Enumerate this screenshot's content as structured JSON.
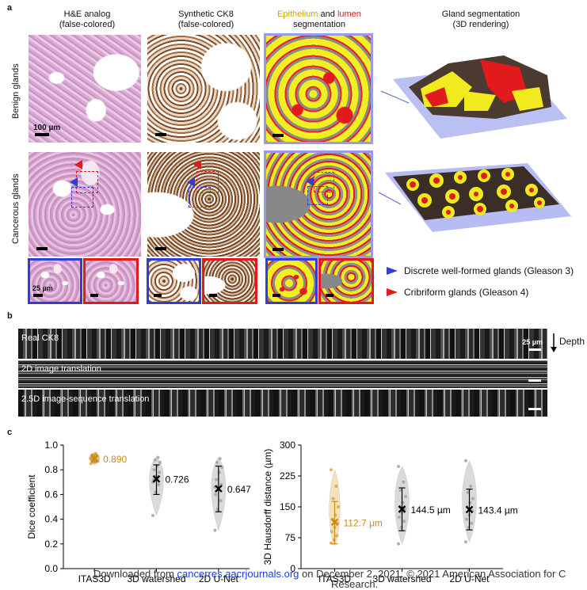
{
  "panels": {
    "a": "a",
    "b": "b",
    "c": "c"
  },
  "panel_a": {
    "col1_line1": "H&E analog",
    "col1_line2": "(false-colored)",
    "col2_line1": "Synthetic CK8",
    "col2_line2": "(false-colored)",
    "col3_epithelium": "Epithelium",
    "col3_and": "and",
    "col3_lumen": "lumen",
    "col3_line2": "segmentation",
    "col4_line1": "Gland segmentation",
    "col4_line2": "(3D rendering)",
    "row1_label": "Benign glands",
    "row2_label": "Cancerous glands",
    "scale_100": "100 µm",
    "scale_25": "25 µm",
    "legend_blue": "Discrete well-formed glands (Gleason 3)",
    "legend_red": "Cribriform glands (Gleason 4)",
    "colors": {
      "epithelium": "#c9a800",
      "lumen": "#e31a1c",
      "blue_box": "#2f3fd6",
      "red_box": "#e11b1b",
      "lavender_box": "#9a9ae8"
    }
  },
  "panel_b": {
    "strip1": "Real CK8",
    "strip2": "2D image translation",
    "strip3": "2.5D image-sequence translation",
    "scale": "25 µm",
    "depth": "Depth"
  },
  "chart_data": [
    {
      "type": "violin",
      "ylabel": "Dice coefficient",
      "ylim": [
        0.0,
        1.0
      ],
      "yticks": [
        "0.0",
        "0.2",
        "0.4",
        "0.6",
        "0.8",
        "1.0"
      ],
      "categories": [
        "ITAS3D",
        "3D watershed",
        "2D U-Net"
      ],
      "means": [
        0.89,
        0.726,
        0.647
      ],
      "mean_labels": [
        "0.890",
        "0.726",
        "0.647"
      ],
      "whiskers": [
        [
          0.86,
          0.92
        ],
        [
          0.6,
          0.84
        ],
        [
          0.46,
          0.83
        ]
      ],
      "violin_range": [
        [
          0.84,
          0.94
        ],
        [
          0.43,
          0.9
        ],
        [
          0.31,
          0.9
        ]
      ],
      "points": [
        [
          0.85,
          0.87,
          0.88,
          0.89,
          0.9,
          0.91,
          0.92,
          0.88,
          0.87,
          0.9,
          0.93,
          0.89
        ],
        [
          0.43,
          0.62,
          0.68,
          0.72,
          0.75,
          0.78,
          0.8,
          0.83,
          0.86,
          0.88,
          0.9,
          0.7
        ],
        [
          0.31,
          0.48,
          0.55,
          0.6,
          0.64,
          0.68,
          0.72,
          0.78,
          0.82,
          0.86,
          0.89,
          0.66
        ]
      ],
      "colors": [
        "#d4a23a",
        "#bdbdbd",
        "#bdbdbd"
      ]
    },
    {
      "type": "violin",
      "ylabel": "3D Hausdorff distance (µm)",
      "ylim": [
        0,
        300
      ],
      "yticks": [
        "0",
        "75",
        "150",
        "225",
        "300"
      ],
      "categories": [
        "ITAS3D",
        "3D watershed",
        "2D U-Net"
      ],
      "means": [
        112.7,
        144.5,
        143.4
      ],
      "mean_labels": [
        "112.7 µm",
        "144.5 µm",
        "143.4 µm"
      ],
      "whiskers": [
        [
          60,
          163
        ],
        [
          92,
          196
        ],
        [
          94,
          193
        ]
      ],
      "violin_range": [
        [
          55,
          240
        ],
        [
          60,
          248
        ],
        [
          65,
          262
        ]
      ],
      "points": [
        [
          62,
          70,
          80,
          90,
          100,
          110,
          120,
          130,
          150,
          170,
          200,
          240
        ],
        [
          60,
          100,
          115,
          125,
          135,
          145,
          150,
          160,
          175,
          190,
          210,
          248
        ],
        [
          65,
          100,
          110,
          120,
          130,
          140,
          150,
          160,
          170,
          185,
          200,
          262
        ]
      ],
      "colors": [
        "#f0c98a",
        "#bdbdbd",
        "#bdbdbd"
      ]
    }
  ],
  "footer": {
    "prefix": "Downloaded from ",
    "link": "cancerres.aacrjournals.org",
    "suffix": " on December 2, 2021. © 2021 American Association for C",
    "line2": "Research."
  }
}
